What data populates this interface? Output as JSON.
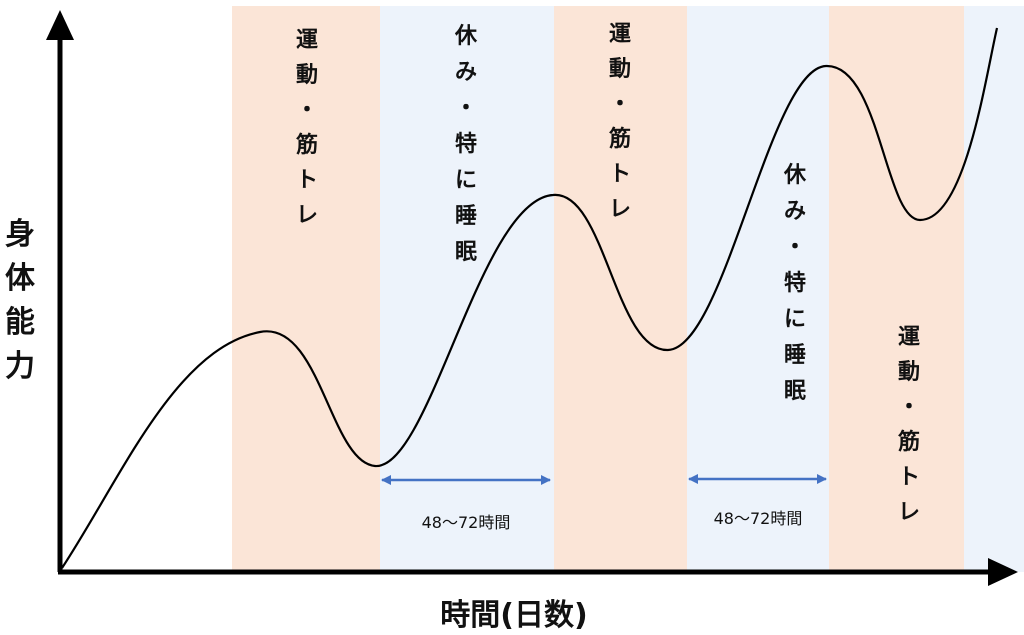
{
  "axes": {
    "y_title": "身体能力",
    "x_title": "時間(日数)"
  },
  "phases": [
    {
      "type": "exercise",
      "label": "運動・筋トレ"
    },
    {
      "type": "rest",
      "label": "休み・特に睡眠"
    },
    {
      "type": "exercise",
      "label": "運動・筋トレ"
    },
    {
      "type": "rest",
      "label": "休み・特に睡眠"
    },
    {
      "type": "exercise",
      "label": "運動・筋トレ"
    },
    {
      "type": "rest",
      "label": ""
    }
  ],
  "intervals": [
    {
      "label": "48〜72時間"
    },
    {
      "label": "48〜72時間"
    }
  ],
  "colors": {
    "exercise_band": "#fbe5d7",
    "rest_band": "#edf3fb",
    "curve": "#000000",
    "axis": "#000000",
    "interval_arrow": "#4472c4"
  }
}
